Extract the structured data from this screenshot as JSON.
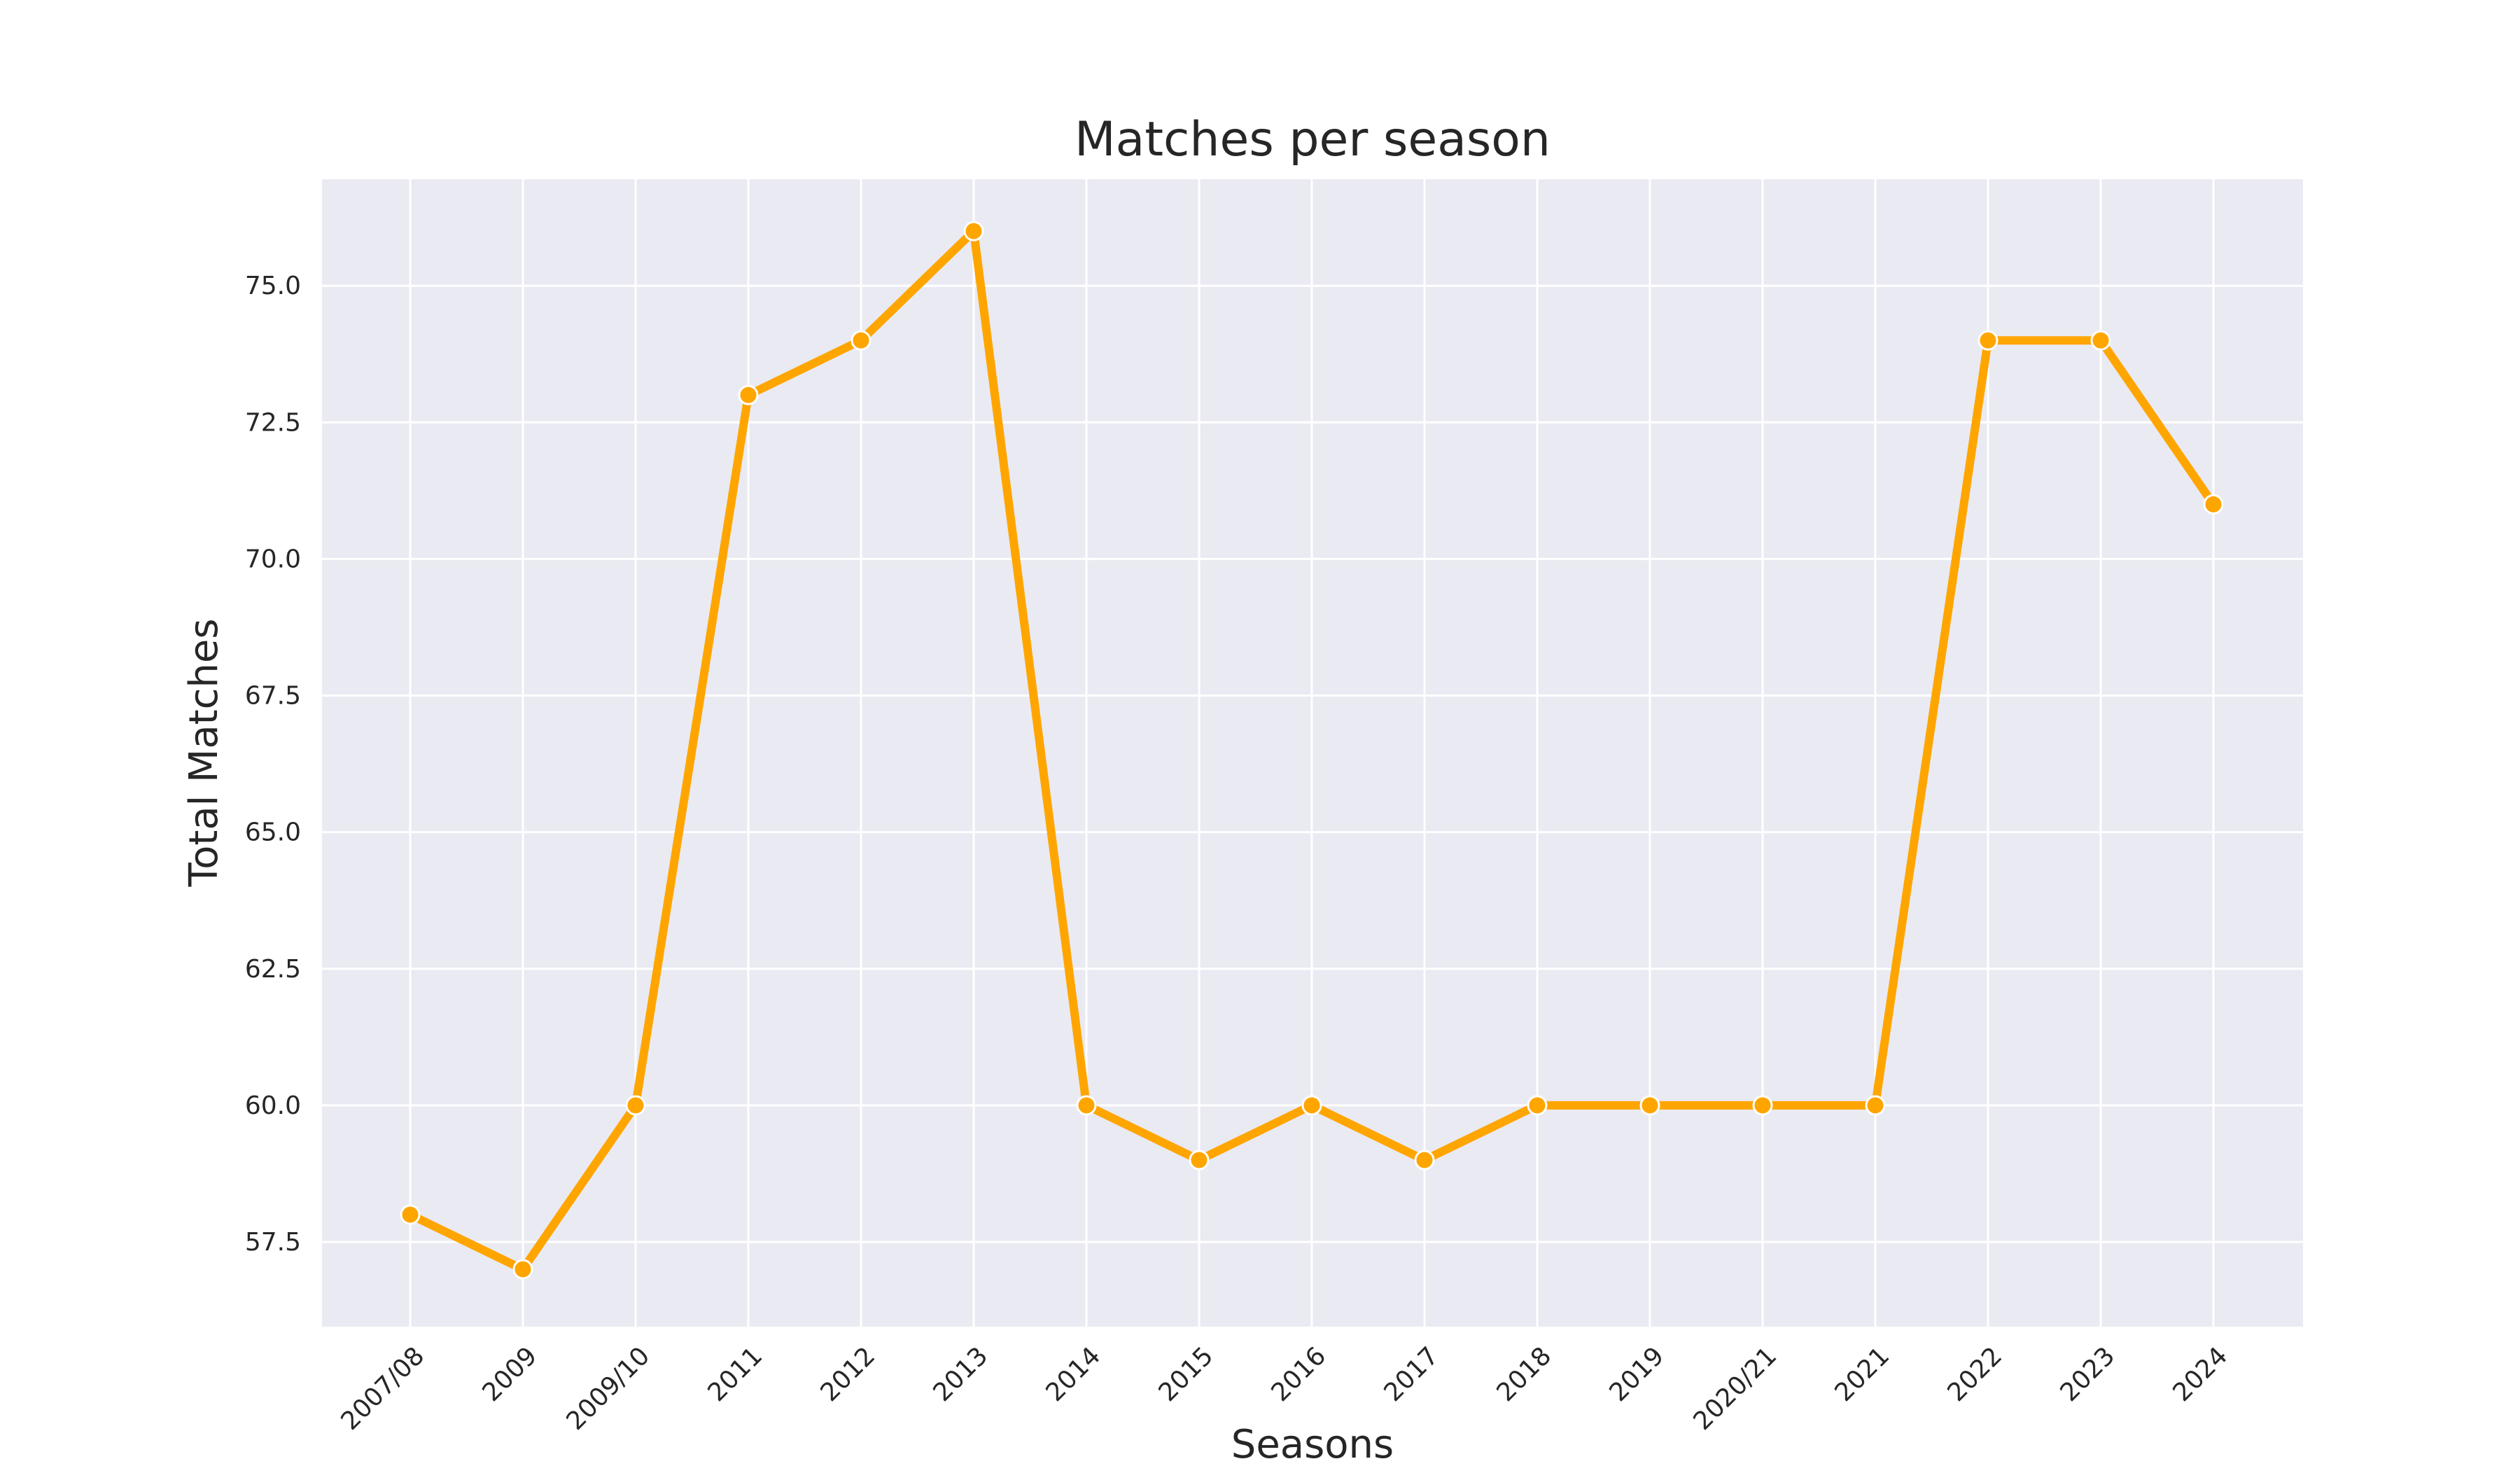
{
  "chart_data": {
    "type": "line",
    "title": "Matches per season",
    "xlabel": "Seasons",
    "ylabel": "Total Matches",
    "categories": [
      "2007/08",
      "2009",
      "2009/10",
      "2011",
      "2012",
      "2013",
      "2014",
      "2015",
      "2016",
      "2017",
      "2018",
      "2019",
      "2020/21",
      "2021",
      "2022",
      "2023",
      "2024"
    ],
    "series": [
      {
        "name": "Total Matches",
        "values": [
          58,
          57,
          60,
          73,
          74,
          76,
          60,
          59,
          60,
          59,
          60,
          60,
          60,
          60,
          74,
          74,
          71
        ]
      }
    ],
    "ylim": [
      55.95,
      76.95
    ],
    "yticks": [
      57.5,
      60.0,
      62.5,
      65.0,
      67.5,
      70.0,
      72.5,
      75.0
    ],
    "grid": true,
    "legend": "none",
    "colors": {
      "line": "#FFA500",
      "marker_edge": "#ffffff",
      "plot_background": "#EAEAF2",
      "grid": "#ffffff",
      "text": "#262626"
    }
  }
}
